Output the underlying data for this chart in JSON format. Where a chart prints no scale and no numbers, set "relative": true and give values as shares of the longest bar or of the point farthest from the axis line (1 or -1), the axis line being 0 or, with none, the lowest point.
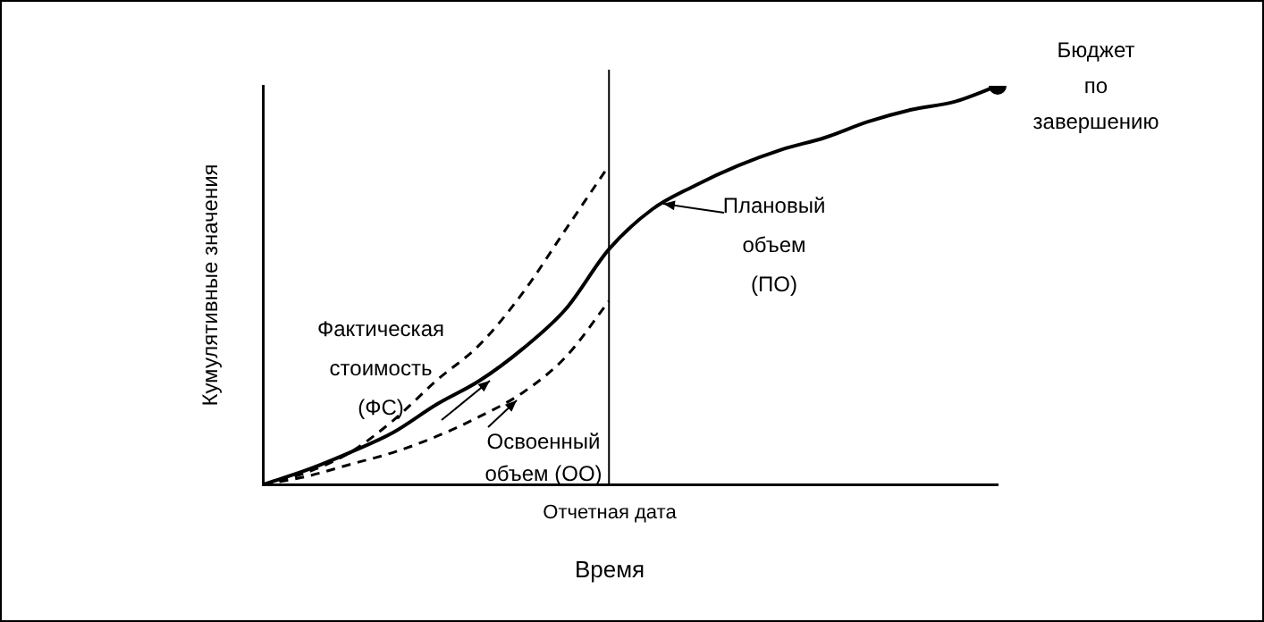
{
  "chart_data": {
    "type": "line",
    "relative": true,
    "ylabel": "Кумулятивные значения",
    "categories": [
      null,
      null,
      null,
      null,
      null,
      null,
      null,
      null,
      null,
      null,
      null,
      null,
      null,
      null,
      null,
      null,
      null,
      null
    ],
    "series": [
      {
        "color": "#000000",
        "line_style": "solid",
        "values": [
          0,
          0.036,
          0.08,
          0.13,
          0.2,
          0.26,
          0.34,
          0.44,
          0.59,
          0.69,
          0.75,
          0.8,
          0.84,
          0.87,
          0.91,
          0.94,
          0.96,
          1
        ]
      },
      {
        "color": "#000000",
        "line_style": "dashed",
        "values": [
          0,
          0.03,
          0.08,
          0.16,
          0.26,
          0.35,
          0.48,
          0.64,
          0.8,
          null,
          null,
          null,
          null,
          null,
          null,
          null,
          null,
          null
        ]
      },
      {
        "color": "#000000",
        "line_style": "dashed",
        "values": [
          0,
          0.02,
          0.05,
          0.08,
          0.12,
          0.17,
          0.23,
          0.32,
          0.46,
          null,
          null,
          null,
          null,
          null,
          null,
          null,
          null,
          null
        ]
      }
    ],
    "annotations": [
      "Фактическая стоимость (ФС)",
      "Плановый объем (ПО)",
      "Освоенный объем (ОО)",
      "Бюджет по завершению",
      "Отчетная дата",
      "Время"
    ]
  }
}
